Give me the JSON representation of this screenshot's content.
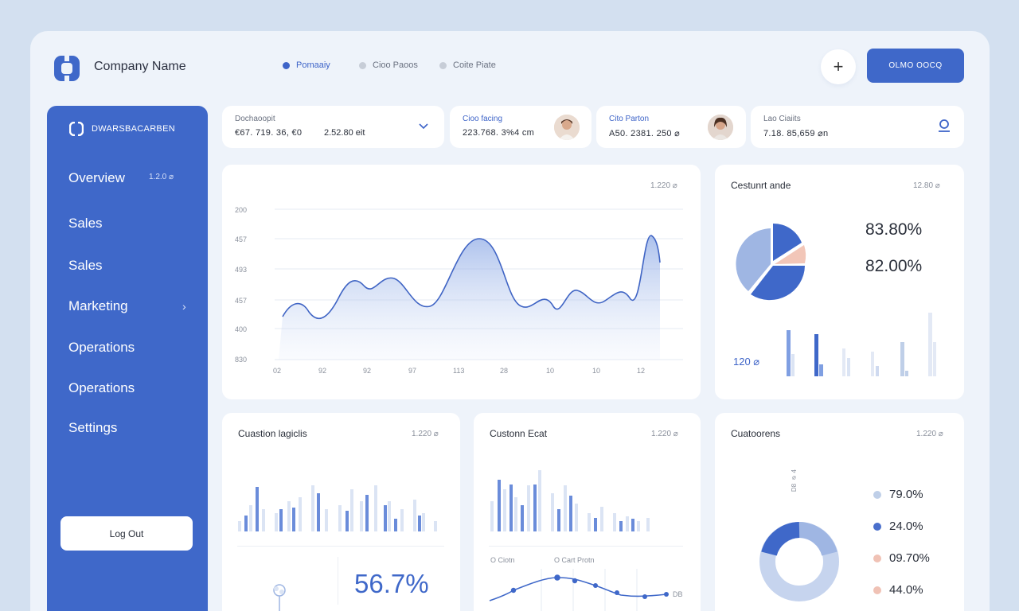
{
  "header": {
    "company_name": "Company Name",
    "nav": [
      "Pomaaiy",
      "Cioo Paoos",
      "Coite Piate"
    ],
    "primary_button": "OLMO OOCQ"
  },
  "sidebar": {
    "brand": "DWARSBACARBEN",
    "badge": "1.2.0 ⌀",
    "items": [
      "Overview",
      "Sales",
      "Sales",
      "Marketing",
      "Operations",
      "Operations",
      "Settings"
    ],
    "logout": "Log Out"
  },
  "stats": [
    {
      "label": "Dochaoopit",
      "value": "€67. 719. 36, €0",
      "value2": "2.52.80 eit"
    },
    {
      "label": "Cioo facing",
      "value": "223.768. 3%4 cm"
    },
    {
      "label": "Cito Parton",
      "value": "A50. 2381. 250 ⌀"
    },
    {
      "label": "Lao Ciaiits",
      "value": "7.18. 85,659 ⌀n"
    }
  ],
  "main_chart": {
    "meta": "1.220 ⌀",
    "y_labels": [
      "200",
      "457",
      "493",
      "457",
      "400",
      "830"
    ],
    "x_labels": [
      "02",
      "92",
      "92",
      "97",
      "113",
      "28",
      "10",
      "10",
      "12"
    ]
  },
  "customer_panel": {
    "title": "Cestunrt ande",
    "meta": "12.80 ⌀",
    "pct1": "83.80%",
    "pct2": "82.00%",
    "bar_label": "120 ⌀"
  },
  "bottom_left": {
    "title": "Cuastion lagiclis",
    "meta": "1.220 ⌀",
    "big": "56.7%"
  },
  "bottom_mid": {
    "title": "Custonn Ecat",
    "meta": "1.220 ⌀",
    "legend1": "O Ciotn",
    "legend2": "O Cart Protn",
    "end_label": "DB"
  },
  "bottom_right": {
    "title": "Cuatoorens",
    "meta": "1.220 ⌀",
    "side_label": "D8 ⌀ 4",
    "legend": [
      {
        "label": "79.0%",
        "color": "#bfcfe8"
      },
      {
        "label": "24.0%",
        "color": "#4a6fcc"
      },
      {
        "label": "09.70%",
        "color": "#f0c2b5"
      },
      {
        "label": "44.0%",
        "color": "#f0c2b5"
      }
    ]
  }
}
